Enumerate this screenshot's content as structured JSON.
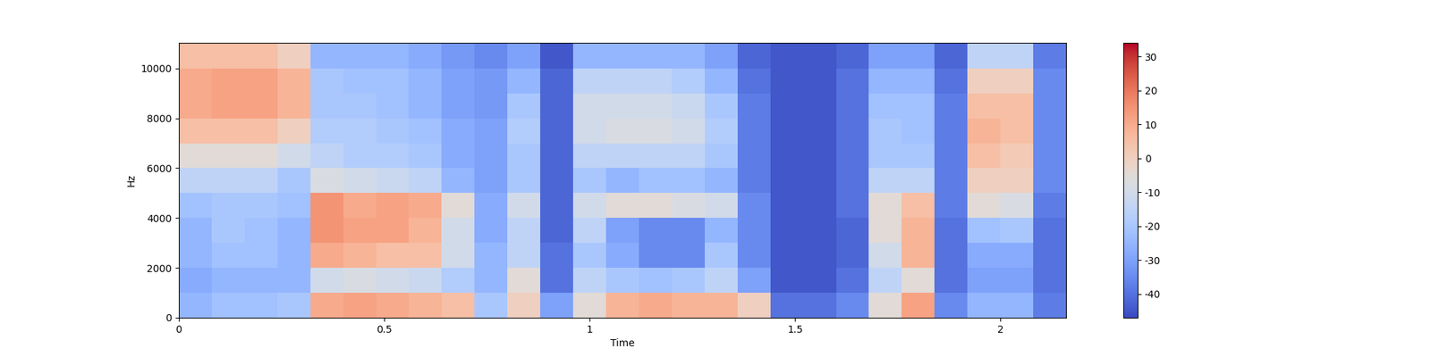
{
  "chart_data": {
    "type": "heatmap",
    "x_label": "Time",
    "y_label": "Hz",
    "color": "coolwarm",
    "xlim": [
      0,
      2.16
    ],
    "ylim": [
      0,
      11025
    ],
    "xticks": [
      0,
      0.5,
      1,
      1.5,
      2
    ],
    "yticks": [
      0,
      2000,
      4000,
      6000,
      8000,
      10000
    ],
    "x_edges": [
      0,
      0.08,
      0.16,
      0.24,
      0.32,
      0.4,
      0.48,
      0.56,
      0.64,
      0.72,
      0.8,
      0.88,
      0.96,
      1.04,
      1.12,
      1.2,
      1.28,
      1.36,
      1.44,
      1.52,
      1.6,
      1.68,
      1.76,
      1.84,
      1.92,
      2.0,
      2.08,
      2.16
    ],
    "y_edges": [
      0,
      1000,
      2000,
      3000,
      4000,
      5000,
      6000,
      7000,
      8000,
      9000,
      10000,
      11025
    ],
    "cells": [
      [
        -25,
        -22,
        -22,
        -20,
        10,
        12,
        10,
        8,
        5,
        -20,
        0,
        -30,
        -5,
        8,
        10,
        8,
        8,
        0,
        -40,
        -40,
        -35,
        -5,
        12,
        -35,
        -25,
        -25,
        -38
      ],
      [
        -28,
        -25,
        -25,
        -25,
        -10,
        -8,
        -10,
        -12,
        -18,
        -25,
        -5,
        -40,
        -15,
        -20,
        -22,
        -20,
        -15,
        -30,
        -45,
        -45,
        -40,
        -15,
        -5,
        -40,
        -30,
        -30,
        -40
      ],
      [
        -25,
        -22,
        -22,
        -25,
        10,
        8,
        5,
        5,
        -10,
        -25,
        -15,
        -40,
        -20,
        -28,
        -35,
        -35,
        -20,
        -35,
        -45,
        -45,
        -42,
        -10,
        8,
        -40,
        -28,
        -28,
        -40
      ],
      [
        -25,
        -20,
        -22,
        -25,
        15,
        12,
        12,
        8,
        -10,
        -28,
        -15,
        -42,
        -15,
        -30,
        -35,
        -35,
        -25,
        -35,
        -45,
        -45,
        -42,
        -5,
        8,
        -40,
        -22,
        -20,
        -40
      ],
      [
        -22,
        -20,
        -20,
        -22,
        15,
        10,
        12,
        10,
        -5,
        -28,
        -10,
        -42,
        -10,
        -5,
        -5,
        -8,
        -10,
        -35,
        -45,
        -45,
        -40,
        -5,
        5,
        -38,
        -5,
        -8,
        -38
      ],
      [
        -15,
        -15,
        -15,
        -20,
        -8,
        -10,
        -12,
        -15,
        -25,
        -30,
        -20,
        -42,
        -20,
        -25,
        -22,
        -22,
        -25,
        -38,
        -45,
        -45,
        -40,
        -15,
        -15,
        -38,
        0,
        0,
        -35
      ],
      [
        -5,
        -5,
        -5,
        -10,
        -15,
        -18,
        -18,
        -20,
        -28,
        -30,
        -20,
        -42,
        -15,
        -15,
        -15,
        -15,
        -20,
        -38,
        -45,
        -45,
        -40,
        -20,
        -20,
        -38,
        5,
        2,
        -35
      ],
      [
        5,
        5,
        5,
        0,
        -18,
        -18,
        -20,
        -22,
        -28,
        -30,
        -18,
        -42,
        -10,
        -8,
        -8,
        -10,
        -18,
        -38,
        -45,
        -45,
        -40,
        -20,
        -22,
        -38,
        8,
        5,
        -35
      ],
      [
        10,
        12,
        12,
        8,
        -20,
        -20,
        -22,
        -25,
        -30,
        -32,
        -20,
        -42,
        -10,
        -10,
        -10,
        -12,
        -20,
        -38,
        -45,
        -45,
        -40,
        -22,
        -22,
        -38,
        5,
        5,
        -35
      ],
      [
        10,
        12,
        12,
        8,
        -20,
        -22,
        -22,
        -25,
        -30,
        -32,
        -25,
        -42,
        -15,
        -15,
        -15,
        -18,
        -25,
        -40,
        -45,
        -45,
        -40,
        -25,
        -25,
        -40,
        0,
        0,
        -35
      ],
      [
        5,
        5,
        5,
        0,
        -25,
        -25,
        -25,
        -28,
        -32,
        -35,
        -30,
        -45,
        -25,
        -25,
        -25,
        -25,
        -30,
        -42,
        -45,
        -45,
        -42,
        -30,
        -30,
        -42,
        -15,
        -15,
        -38
      ]
    ],
    "colorbar": {
      "range": [
        -47,
        34
      ],
      "ticks": [
        -40,
        -30,
        -20,
        -10,
        0,
        10,
        20,
        30
      ]
    }
  }
}
